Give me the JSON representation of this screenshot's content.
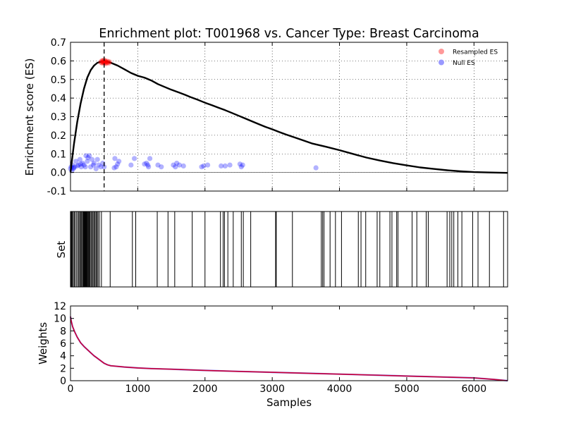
{
  "chart_data": [
    {
      "type": "line",
      "panel": "enrichment",
      "title": "Enrichment plot: T001968 vs. Cancer Type: Breast Carcinoma",
      "xlabel": "",
      "ylabel": "Enrichment score (ES)",
      "xlim": [
        0,
        6500
      ],
      "ylim": [
        -0.1,
        0.7
      ],
      "yticks": [
        "-0.1",
        "0.0",
        "0.1",
        "0.2",
        "0.3",
        "0.4",
        "0.5",
        "0.6",
        "0.7"
      ],
      "grid": true,
      "legend": {
        "position": "top-right",
        "entries": [
          "Resampled ES",
          "Null ES"
        ]
      },
      "series": [
        {
          "name": "",
          "type": "line",
          "color": "#000000",
          "x": [
            0,
            20,
            50,
            100,
            150,
            200,
            250,
            300,
            350,
            400,
            450,
            500,
            550,
            600,
            700,
            800,
            900,
            1000,
            1100,
            1200,
            1300,
            1400,
            1500,
            1600,
            1700,
            1800,
            1900,
            2000,
            2100,
            2200,
            2300,
            2400,
            2500,
            2600,
            2700,
            2800,
            2900,
            3000,
            3100,
            3200,
            3400,
            3600,
            3800,
            4000,
            4200,
            4400,
            4600,
            4800,
            5000,
            5200,
            5400,
            5600,
            5800,
            6000,
            6200,
            6500
          ],
          "y": [
            0.0,
            0.06,
            0.15,
            0.27,
            0.37,
            0.45,
            0.51,
            0.55,
            0.575,
            0.59,
            0.595,
            0.598,
            0.595,
            0.59,
            0.575,
            0.555,
            0.535,
            0.52,
            0.51,
            0.495,
            0.475,
            0.46,
            0.445,
            0.432,
            0.418,
            0.403,
            0.39,
            0.375,
            0.362,
            0.348,
            0.335,
            0.32,
            0.305,
            0.29,
            0.275,
            0.26,
            0.245,
            0.232,
            0.218,
            0.205,
            0.18,
            0.155,
            0.138,
            0.12,
            0.1,
            0.08,
            0.064,
            0.05,
            0.038,
            0.027,
            0.019,
            0.012,
            0.006,
            0.002,
            0.0,
            -0.002
          ]
        },
        {
          "name": "Resampled ES",
          "type": "scatter",
          "color": "#ff0000",
          "x": [
            450,
            460,
            470,
            475,
            480,
            485,
            490,
            495,
            500,
            505,
            510,
            515,
            520,
            525,
            530,
            540,
            550,
            560,
            570,
            580
          ],
          "y": [
            0.592,
            0.598,
            0.588,
            0.602,
            0.595,
            0.59,
            0.6,
            0.593,
            0.605,
            0.588,
            0.597,
            0.592,
            0.6,
            0.585,
            0.595,
            0.59,
            0.598,
            0.593,
            0.588,
            0.595
          ]
        },
        {
          "name": "Null ES",
          "type": "scatter",
          "color": "#0000ff",
          "x": [
            0,
            10,
            20,
            30,
            40,
            50,
            60,
            80,
            100,
            120,
            140,
            150,
            160,
            180,
            200,
            220,
            230,
            250,
            260,
            280,
            300,
            320,
            340,
            350,
            380,
            400,
            420,
            450,
            480,
            500,
            650,
            660,
            680,
            700,
            720,
            900,
            950,
            1100,
            1130,
            1150,
            1160,
            1180,
            1300,
            1350,
            1530,
            1560,
            1580,
            1620,
            1680,
            1950,
            1980,
            2040,
            2240,
            2300,
            2370,
            2520,
            2540,
            2560,
            3650
          ],
          "y": [
            0.02,
            0.03,
            0.01,
            0.04,
            0.02,
            0.025,
            0.03,
            0.06,
            0.035,
            0.04,
            0.07,
            0.045,
            0.03,
            0.05,
            0.04,
            0.03,
            0.09,
            0.06,
            0.08,
            0.09,
            0.03,
            0.07,
            0.04,
            0.05,
            0.02,
            0.07,
            0.04,
            0.03,
            0.05,
            0.03,
            0.025,
            0.075,
            0.03,
            0.045,
            0.06,
            0.04,
            0.075,
            0.045,
            0.05,
            0.04,
            0.03,
            0.075,
            0.04,
            0.03,
            0.04,
            0.03,
            0.05,
            0.04,
            0.035,
            0.03,
            0.035,
            0.04,
            0.035,
            0.035,
            0.04,
            0.045,
            0.03,
            0.04,
            0.025
          ]
        }
      ],
      "vline": {
        "x": 500,
        "style": "dashed"
      },
      "hline": {
        "y": 0.0
      }
    },
    {
      "type": "event",
      "panel": "set",
      "ylabel": "Set",
      "xlim": [
        0,
        6500
      ],
      "positions": [
        5,
        15,
        25,
        40,
        55,
        70,
        90,
        110,
        125,
        140,
        155,
        165,
        180,
        190,
        200,
        210,
        215,
        225,
        235,
        240,
        250,
        260,
        270,
        280,
        290,
        305,
        320,
        335,
        350,
        365,
        380,
        395,
        410,
        430,
        460,
        590,
        920,
        970,
        1290,
        1450,
        1550,
        1810,
        2000,
        2230,
        2270,
        2290,
        2340,
        2420,
        2540,
        2570,
        2680,
        3050,
        3060,
        3300,
        3730,
        3750,
        3770,
        3860,
        3940,
        4030,
        4280,
        4320,
        4390,
        4560,
        4600,
        4750,
        4780,
        4850,
        4870,
        5080,
        5150,
        5290,
        5320,
        5600,
        5640,
        5670,
        5700,
        5760,
        5820,
        5980,
        6060,
        6230,
        6440,
        6500
      ]
    },
    {
      "type": "line",
      "panel": "weights",
      "xlabel": "Samples",
      "ylabel": "Weights",
      "xlim": [
        0,
        6500
      ],
      "ylim": [
        0,
        12
      ],
      "xticks": [
        "0",
        "1000",
        "2000",
        "3000",
        "4000",
        "5000",
        "6000"
      ],
      "yticks": [
        "0",
        "2",
        "4",
        "6",
        "8",
        "10",
        "12"
      ],
      "grid": false,
      "series": [
        {
          "name": "",
          "color": "#cc0033",
          "x": [
            0,
            10,
            30,
            60,
            100,
            150,
            200,
            250,
            300,
            350,
            400,
            450,
            500,
            550,
            600,
            700,
            800,
            1000,
            1200,
            1500,
            2000,
            2500,
            3000,
            3500,
            4000,
            4500,
            5000,
            5500,
            6000,
            6300,
            6500
          ],
          "y": [
            10.3,
            9.6,
            8.7,
            7.9,
            7.0,
            6.1,
            5.5,
            5.0,
            4.5,
            4.0,
            3.6,
            3.2,
            2.8,
            2.55,
            2.4,
            2.3,
            2.2,
            2.05,
            1.95,
            1.85,
            1.65,
            1.5,
            1.35,
            1.2,
            1.05,
            0.9,
            0.75,
            0.6,
            0.45,
            0.2,
            0.0
          ]
        }
      ]
    }
  ]
}
